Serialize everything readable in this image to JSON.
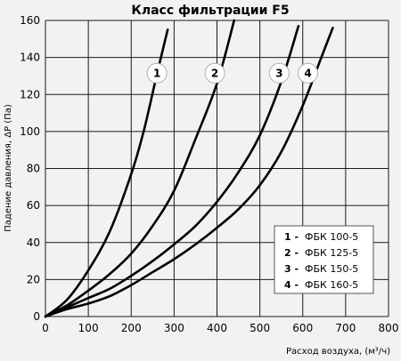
{
  "chart_data": {
    "type": "line",
    "title": "Класс фильтрации F5",
    "xlabel": "Расход воздуха, (м³/ч)",
    "ylabel": "Падение давления, ΔP (Па)",
    "xlim": [
      0,
      800
    ],
    "ylim": [
      0,
      160
    ],
    "x_ticks": [
      0,
      100,
      200,
      300,
      400,
      500,
      600,
      700,
      800
    ],
    "y_ticks": [
      0,
      20,
      40,
      60,
      80,
      100,
      120,
      140,
      160
    ],
    "grid": true,
    "legend_position": "lower-right",
    "series": [
      {
        "name": "ФБК 100-5",
        "number": "1",
        "legend_num": "1 -",
        "x": [
          0,
          50,
          100,
          150,
          200,
          230,
          260,
          285
        ],
        "y": [
          0,
          9,
          25,
          46,
          77,
          101,
          131,
          155
        ]
      },
      {
        "name": "ФБК 125-5",
        "number": "2",
        "legend_num": "2 -",
        "x": [
          0,
          50,
          100,
          150,
          200,
          250,
          300,
          350,
          400,
          440
        ],
        "y": [
          0,
          6,
          14,
          23,
          34,
          49,
          68,
          96,
          126,
          160
        ]
      },
      {
        "name": "ФБК 150-5",
        "number": "3",
        "legend_num": "3 -",
        "x": [
          0,
          50,
          100,
          150,
          200,
          250,
          300,
          350,
          400,
          450,
          500,
          550,
          590
        ],
        "y": [
          0,
          5,
          10,
          15,
          22,
          30,
          39,
          49,
          62,
          78,
          98,
          127,
          157
        ]
      },
      {
        "name": "ФБК 160-5",
        "number": "4",
        "legend_num": "4 -",
        "x": [
          0,
          50,
          100,
          150,
          200,
          250,
          300,
          350,
          400,
          450,
          500,
          550,
          600,
          640,
          670
        ],
        "y": [
          0,
          4,
          7,
          11,
          17,
          24,
          31,
          39,
          48,
          58,
          71,
          89,
          114,
          138,
          156
        ]
      }
    ],
    "curve_labels": [
      {
        "series": 0,
        "x": 260,
        "y": 132
      },
      {
        "series": 1,
        "x": 395,
        "y": 132
      },
      {
        "series": 2,
        "x": 545,
        "y": 132
      },
      {
        "series": 3,
        "x": 612,
        "y": 132
      }
    ]
  }
}
